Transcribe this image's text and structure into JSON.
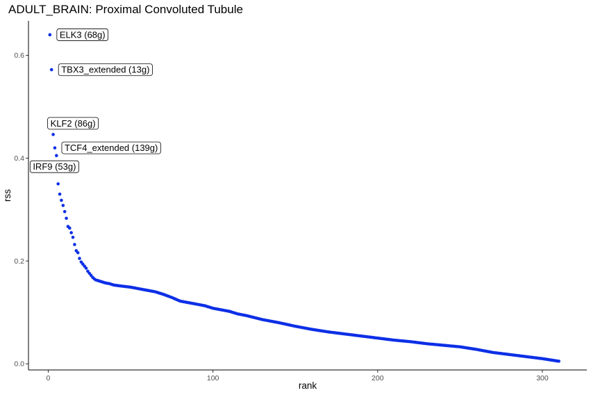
{
  "chart_data": {
    "type": "scatter",
    "title": "ADULT_BRAIN: Proximal Convoluted Tubule",
    "xlabel": "rank",
    "ylabel": "rss",
    "xlim": [
      -12,
      327
    ],
    "ylim": [
      -0.012,
      0.667
    ],
    "x_ticks": [
      0,
      100,
      200,
      300
    ],
    "y_ticks": [
      0.0,
      0.2,
      0.4,
      0.6
    ],
    "x_tick_labels": [
      "0",
      "100",
      "200",
      "300"
    ],
    "y_tick_labels": [
      "0.0",
      "0.2",
      "0.4",
      "0.6"
    ],
    "grid": false,
    "legend": "none",
    "point_color": "#0c2fe6",
    "n_points": 310,
    "series": [
      {
        "x": [
          1,
          2,
          3,
          4,
          5,
          6,
          7,
          8,
          9,
          10,
          11,
          12,
          13,
          14,
          15,
          16,
          17,
          18,
          19,
          20,
          21,
          22,
          23,
          24,
          25,
          26,
          27,
          28,
          29,
          30,
          31,
          33,
          35,
          37,
          40,
          45,
          50,
          55,
          60,
          65,
          70,
          75,
          80,
          85,
          90,
          95,
          100,
          105,
          110,
          115,
          120,
          125,
          130,
          140,
          150,
          160,
          170,
          180,
          190,
          200,
          210,
          220,
          230,
          240,
          250,
          260,
          270,
          280,
          290,
          300,
          310
        ],
        "y": [
          0.64,
          0.572,
          0.446,
          0.42,
          0.405,
          0.35,
          0.33,
          0.318,
          0.308,
          0.296,
          0.283,
          0.267,
          0.264,
          0.255,
          0.246,
          0.232,
          0.22,
          0.216,
          0.205,
          0.198,
          0.194,
          0.19,
          0.186,
          0.18,
          0.176,
          0.172,
          0.168,
          0.165,
          0.163,
          0.162,
          0.161,
          0.159,
          0.157,
          0.156,
          0.153,
          0.151,
          0.149,
          0.146,
          0.143,
          0.14,
          0.135,
          0.129,
          0.122,
          0.119,
          0.116,
          0.113,
          0.108,
          0.105,
          0.102,
          0.097,
          0.094,
          0.09,
          0.086,
          0.08,
          0.073,
          0.067,
          0.062,
          0.058,
          0.054,
          0.05,
          0.046,
          0.043,
          0.039,
          0.036,
          0.033,
          0.028,
          0.022,
          0.018,
          0.014,
          0.01,
          0.005
        ]
      }
    ],
    "annotations": [
      {
        "label": "ELK3 (68g)",
        "x": 1,
        "y": 0.64,
        "anchor": "right-of-point"
      },
      {
        "label": "TBX3_extended (13g)",
        "x": 2,
        "y": 0.572,
        "anchor": "right-of-point"
      },
      {
        "label": "KLF2 (86g)",
        "x": 3,
        "y": 0.446,
        "anchor": "above-point"
      },
      {
        "label": "TCF4_extended (139g)",
        "x": 4,
        "y": 0.42,
        "anchor": "right-of-point"
      },
      {
        "label": "IRF9 (53g)",
        "x": 5,
        "y": 0.405,
        "anchor": "below-left-of-point"
      }
    ]
  }
}
